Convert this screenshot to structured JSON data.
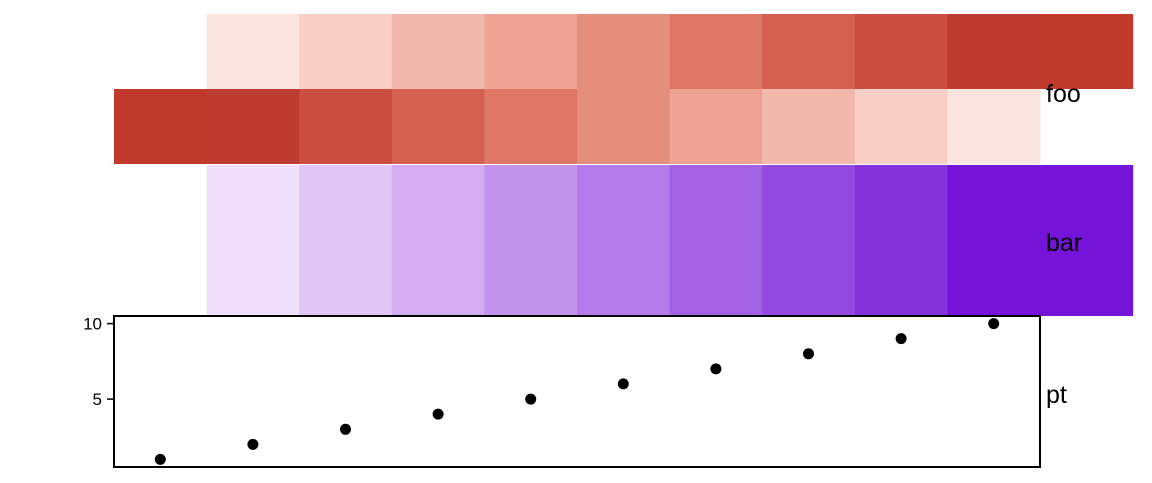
{
  "chart_data": [
    {
      "type": "heatmap",
      "name": "foo",
      "label": "foo",
      "rows": [
        {
          "x": [
            2,
            3,
            4,
            5,
            6,
            7,
            8,
            9,
            10,
            11
          ],
          "values": [
            1,
            2,
            3,
            4,
            5,
            6,
            7,
            8,
            9,
            10
          ]
        },
        {
          "x": [
            1,
            2,
            3,
            4,
            5,
            6,
            7,
            8,
            9,
            10
          ],
          "values": [
            10,
            9,
            8,
            7,
            6,
            5,
            4,
            3,
            2,
            1
          ]
        }
      ],
      "colors": [
        "#fce5df",
        "#f8cfc6",
        "#f3b8ac",
        "#eea395",
        "#e68e7e",
        "#df7767",
        "#d5604f",
        "#ca4d3f",
        "#be3b32",
        "#c0392b"
      ],
      "legend": false
    },
    {
      "type": "heatmap",
      "name": "bar",
      "label": "bar",
      "rows": [
        {
          "x": [
            2,
            3,
            4,
            5,
            6,
            7,
            8,
            9,
            10,
            11
          ],
          "values": [
            1,
            2,
            3,
            4,
            5,
            6,
            7,
            8,
            9,
            10
          ]
        }
      ],
      "colors": [
        "#efdffa",
        "#e1c6f5",
        "#d3adef",
        "#c494ed",
        "#b67bea",
        "#a362e4",
        "#944ae0",
        "#8533db",
        "#7613d9",
        "#7613d9"
      ],
      "legend": false
    },
    {
      "type": "scatter",
      "name": "pt",
      "label": "pt",
      "x": [
        1,
        2,
        3,
        4,
        5,
        6,
        7,
        8,
        9,
        10
      ],
      "y": [
        1,
        2,
        3,
        4,
        5,
        6,
        7,
        8,
        9,
        10
      ],
      "yticks": [
        5,
        10
      ],
      "ylim": [
        0.5,
        10.5
      ],
      "xlim": [
        0.5,
        10.5
      ],
      "point_color": "#000000",
      "frame": true,
      "grid": false
    }
  ]
}
